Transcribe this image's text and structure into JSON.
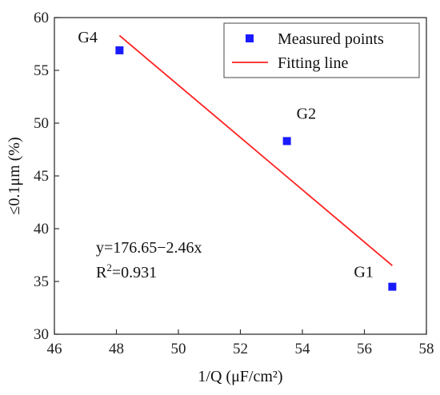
{
  "chart_data": {
    "type": "scatter",
    "xlabel": "1/Q (μF/cm²)",
    "ylabel": "≤0.1μm (%)",
    "xlim": [
      46,
      58
    ],
    "ylim": [
      30,
      60
    ],
    "xticks": [
      "46",
      "48",
      "50",
      "52",
      "54",
      "56",
      "58"
    ],
    "yticks": [
      "30",
      "35",
      "40",
      "45",
      "50",
      "55",
      "60"
    ],
    "grid": false,
    "legend_position": "top-right",
    "series": [
      {
        "name": "Measured points",
        "kind": "scatter",
        "marker": "square",
        "color": "#1a1aff",
        "points": [
          {
            "x": 48.1,
            "y": 56.9,
            "label": "G4"
          },
          {
            "x": 53.5,
            "y": 48.3,
            "label": "G2"
          },
          {
            "x": 56.9,
            "y": 34.5,
            "label": "G1"
          }
        ]
      },
      {
        "name": "Fitting line",
        "kind": "line",
        "color": "#ff2020",
        "x": [
          48.1,
          56.9
        ],
        "y": [
          58.3,
          36.5
        ]
      }
    ],
    "annotations": {
      "equation": "y=176.65−2.46x",
      "r2_prefix": "R",
      "r2_sup": "2",
      "r2_suffix": "=0.931"
    }
  }
}
